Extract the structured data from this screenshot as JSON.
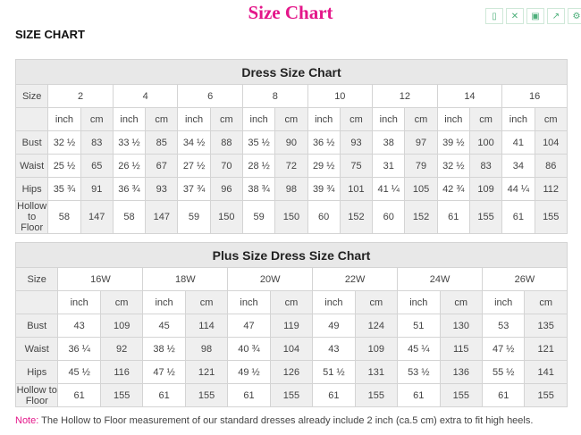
{
  "page_title": "Size Chart",
  "toolbar": {
    "icons": [
      "bookmark-icon",
      "fullscreen-icon",
      "save-icon",
      "share-icon",
      "settings-icon"
    ]
  },
  "heading": "SIZE CHART",
  "dress": {
    "title": "Dress Size Chart",
    "size_label": "Size",
    "sizes": [
      "2",
      "4",
      "6",
      "8",
      "10",
      "12",
      "14",
      "16"
    ],
    "units": [
      "inch",
      "cm"
    ],
    "rows": [
      {
        "label": "Bust",
        "values": [
          "32 ½",
          "83",
          "33 ½",
          "85",
          "34 ½",
          "88",
          "35 ½",
          "90",
          "36 ½",
          "93",
          "38",
          "97",
          "39 ½",
          "100",
          "41",
          "104"
        ]
      },
      {
        "label": "Waist",
        "values": [
          "25 ½",
          "65",
          "26 ½",
          "67",
          "27 ½",
          "70",
          "28 ½",
          "72",
          "29 ½",
          "75",
          "31",
          "79",
          "32 ½",
          "83",
          "34",
          "86"
        ]
      },
      {
        "label": "Hips",
        "values": [
          "35 ¾",
          "91",
          "36 ¾",
          "93",
          "37 ¾",
          "96",
          "38 ¾",
          "98",
          "39 ¾",
          "101",
          "41 ¼",
          "105",
          "42 ¾",
          "109",
          "44 ¼",
          "112"
        ]
      },
      {
        "label": "Hollow to Floor",
        "values": [
          "58",
          "147",
          "58",
          "147",
          "59",
          "150",
          "59",
          "150",
          "60",
          "152",
          "60",
          "152",
          "61",
          "155",
          "61",
          "155"
        ]
      }
    ]
  },
  "plus": {
    "title": "Plus Size Dress Size Chart",
    "size_label": "Size",
    "sizes": [
      "16W",
      "18W",
      "20W",
      "22W",
      "24W",
      "26W"
    ],
    "units": [
      "inch",
      "cm"
    ],
    "rows": [
      {
        "label": "Bust",
        "values": [
          "43",
          "109",
          "45",
          "114",
          "47",
          "119",
          "49",
          "124",
          "51",
          "130",
          "53",
          "135"
        ]
      },
      {
        "label": "Waist",
        "values": [
          "36 ¼",
          "92",
          "38 ½",
          "98",
          "40 ¾",
          "104",
          "43",
          "109",
          "45 ¼",
          "115",
          "47 ½",
          "121"
        ]
      },
      {
        "label": "Hips",
        "values": [
          "45 ½",
          "116",
          "47 ½",
          "121",
          "49 ½",
          "126",
          "51 ½",
          "131",
          "53 ½",
          "136",
          "55 ½",
          "141"
        ]
      },
      {
        "label": "Hollow to Floor",
        "values": [
          "61",
          "155",
          "61",
          "155",
          "61",
          "155",
          "61",
          "155",
          "61",
          "155",
          "61",
          "155"
        ]
      }
    ]
  },
  "note": {
    "prefix": "Note:",
    "text": " The Hollow to Floor measurement of our standard dresses already include 2 inch (ca.5 cm) extra to fit high heels."
  },
  "colors": {
    "accent": "#e4178a",
    "toolbar": "#4caf7a"
  }
}
